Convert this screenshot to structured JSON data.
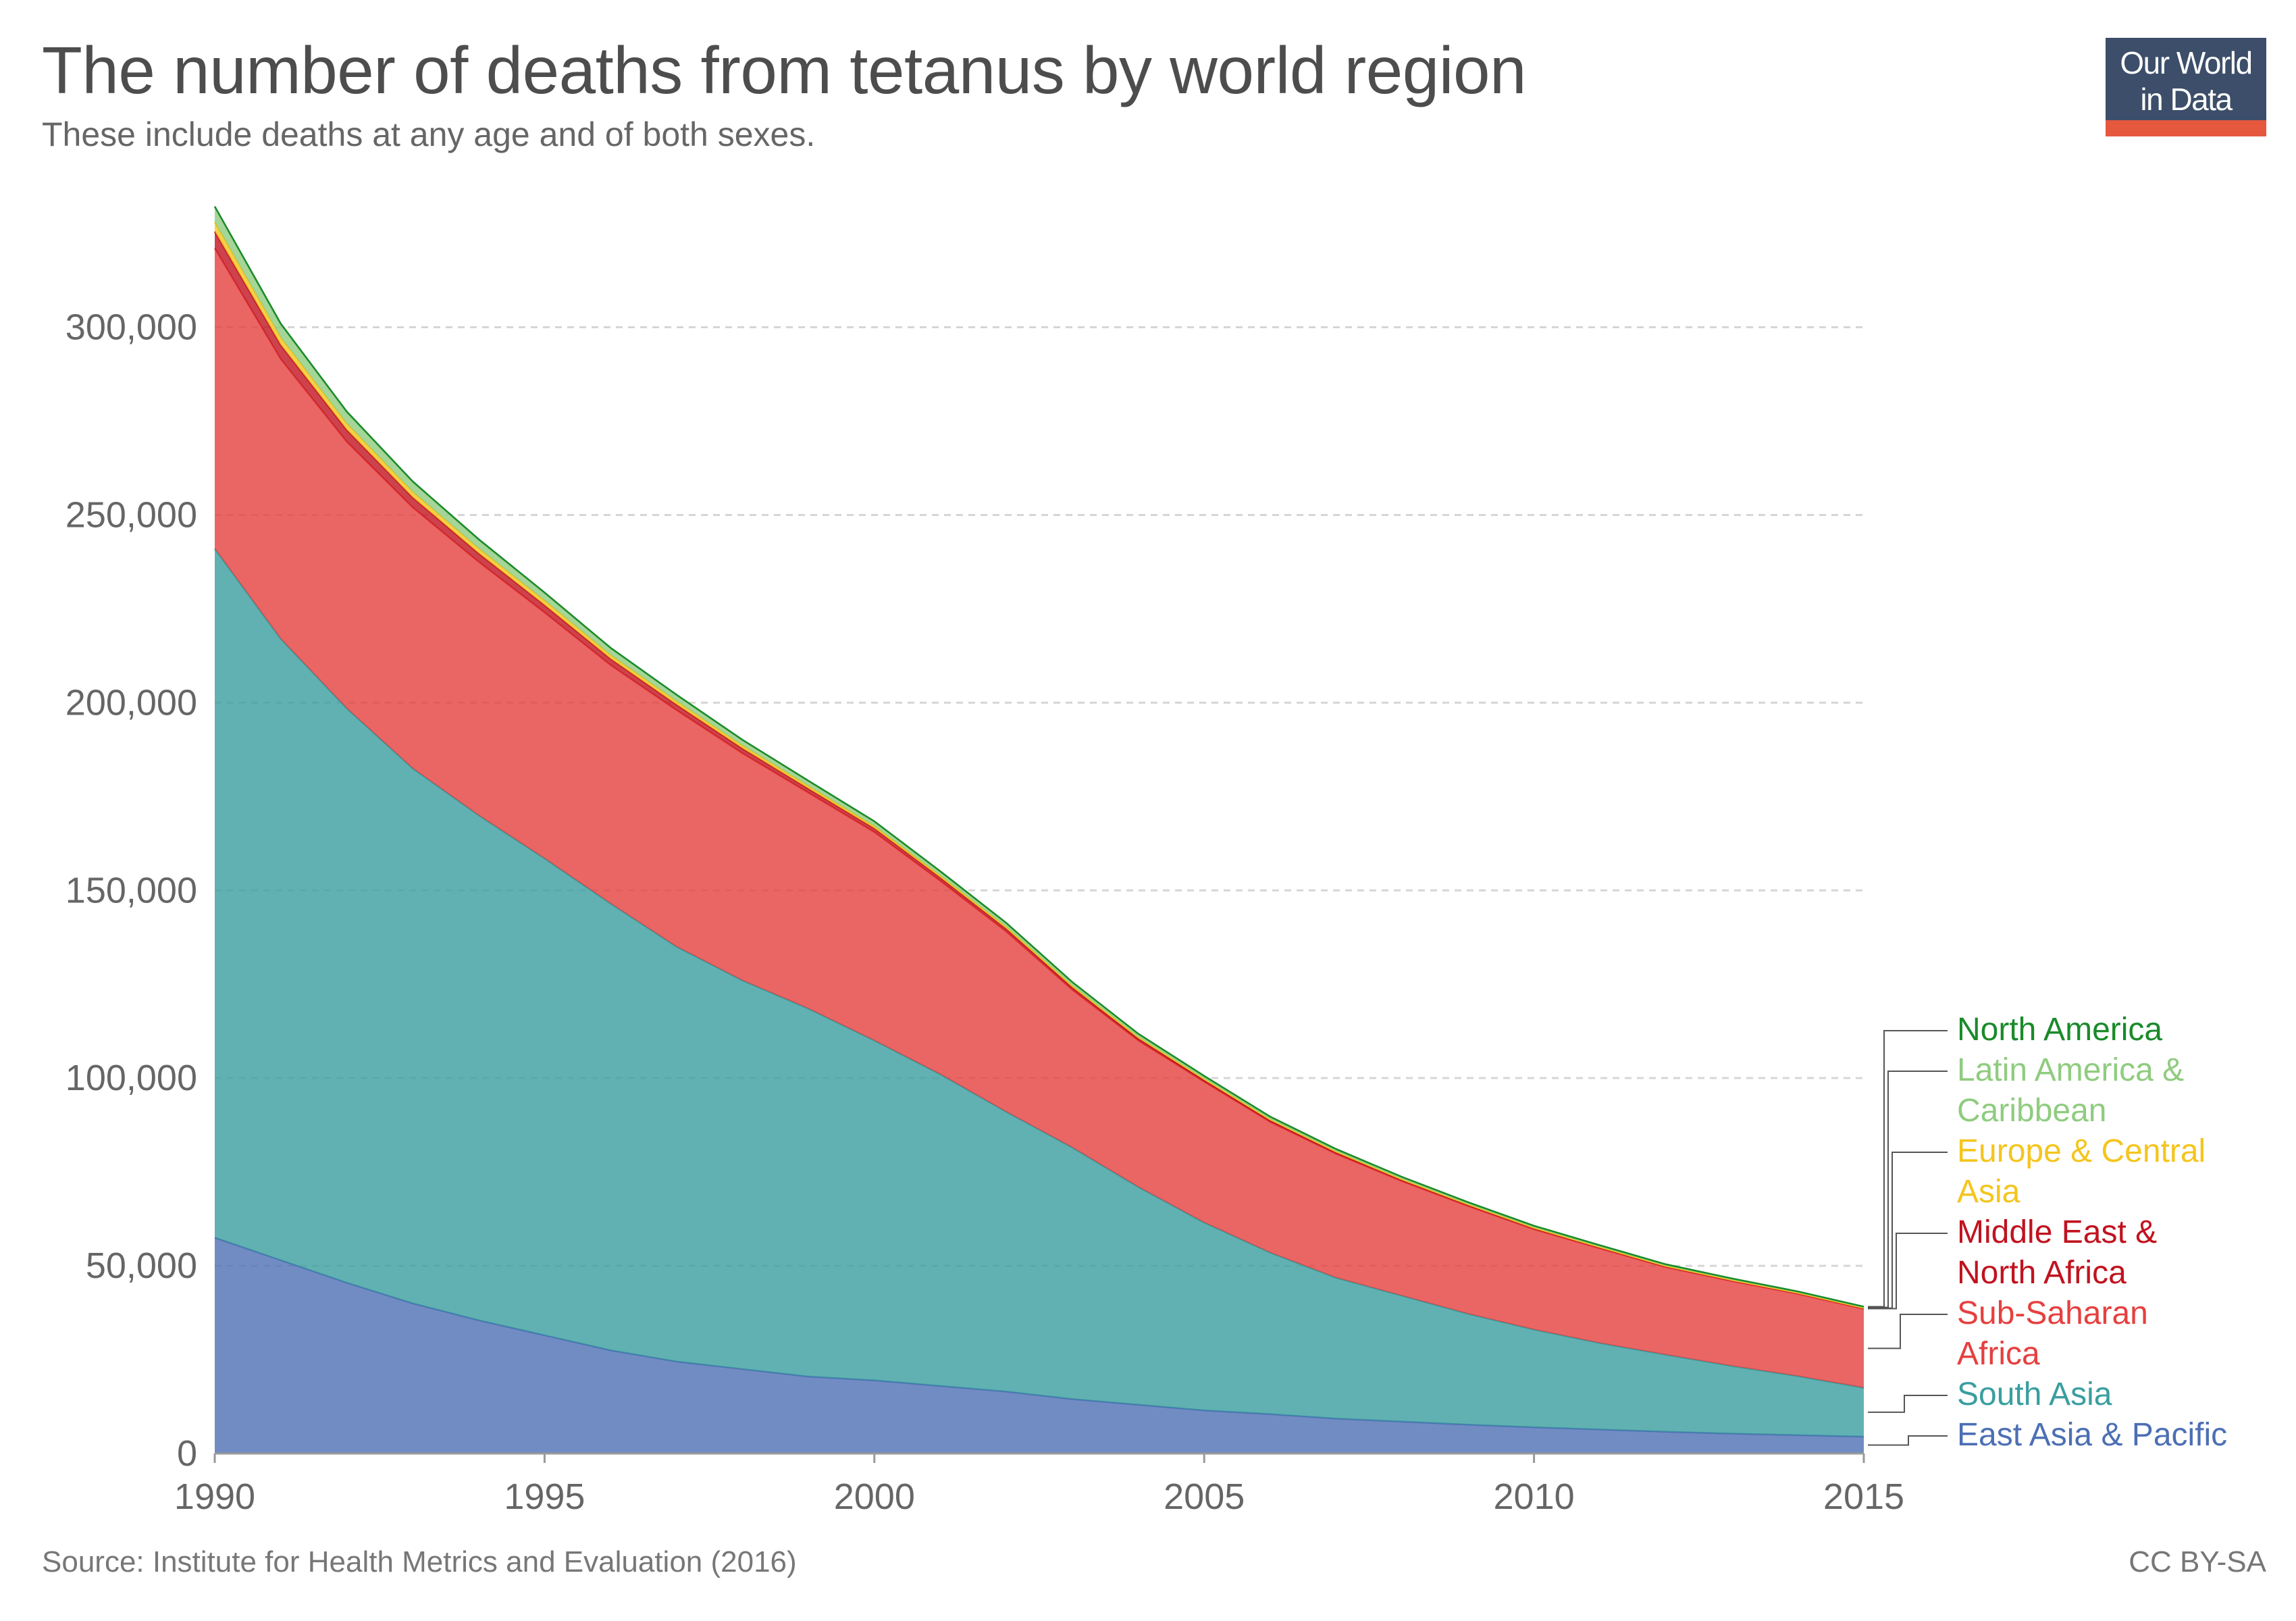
{
  "header": {
    "title": "The number of deaths from tetanus by world region",
    "subtitle": "These include deaths at any age and of both sexes.",
    "logo_line1": "Our World",
    "logo_line2": "in Data"
  },
  "footer": {
    "source": "Source: Institute for Health Metrics and Evaluation (2016)",
    "license": "CC BY-SA"
  },
  "chart_data": {
    "type": "area",
    "stacked": true,
    "title": "The number of deaths from tetanus by world region",
    "subtitle": "These include deaths at any age and of both sexes.",
    "xlabel": "",
    "ylabel": "",
    "xlim": [
      1990,
      2015
    ],
    "ylim": [
      0,
      335000
    ],
    "x_ticks": [
      1990,
      1995,
      2000,
      2005,
      2010,
      2015
    ],
    "x_tick_labels": [
      "1990",
      "1995",
      "2000",
      "2005",
      "2010",
      "2015"
    ],
    "y_ticks": [
      0,
      50000,
      100000,
      150000,
      200000,
      250000,
      300000
    ],
    "y_tick_labels": [
      "0",
      "50,000",
      "100,000",
      "150,000",
      "200,000",
      "250,000",
      "300,000"
    ],
    "grid": "horizontal dashed",
    "legend_position": "right",
    "x": [
      1990,
      1991,
      1992,
      1993,
      1994,
      1995,
      1996,
      1997,
      1998,
      1999,
      2000,
      2001,
      2002,
      2003,
      2004,
      2005,
      2006,
      2007,
      2008,
      2009,
      2010,
      2011,
      2012,
      2013,
      2014,
      2015
    ],
    "series": [
      {
        "name": "East Asia & Pacific",
        "color": "#4c6fb4",
        "label_lines": [
          "East Asia & Pacific"
        ],
        "values": [
          57500,
          51500,
          45500,
          40000,
          35500,
          31500,
          27500,
          24500,
          22500,
          20500,
          19500,
          18000,
          16500,
          14500,
          13000,
          11500,
          10500,
          9300,
          8500,
          7700,
          7000,
          6400,
          5800,
          5300,
          4900,
          4500
        ]
      },
      {
        "name": "South Asia",
        "color": "#3a9e9f",
        "label_lines": [
          "South Asia"
        ],
        "values": [
          183500,
          165500,
          153000,
          142500,
          134500,
          127000,
          119000,
          110500,
          103500,
          98000,
          90500,
          83000,
          74500,
          67000,
          58000,
          50000,
          43000,
          37500,
          33500,
          29500,
          26000,
          23000,
          20500,
          18000,
          15700,
          13000
        ]
      },
      {
        "name": "Sub-Saharan Africa",
        "color": "#e5403f",
        "label_lines": [
          "Sub-Saharan",
          "Africa"
        ],
        "values": [
          80000,
          74500,
          71000,
          69500,
          67500,
          65500,
          63500,
          63000,
          60500,
          57500,
          55500,
          51500,
          48000,
          42000,
          39000,
          37500,
          34800,
          33000,
          30500,
          28700,
          26700,
          25200,
          23300,
          22600,
          21900,
          21000
        ]
      },
      {
        "name": "Middle East & North Africa",
        "color": "#c0131f",
        "label_lines": [
          "Middle East &",
          "North Africa"
        ],
        "values": [
          4500,
          3800,
          3200,
          2700,
          2300,
          2000,
          1700,
          1500,
          1300,
          1100,
          1000,
          900,
          800,
          700,
          600,
          500,
          450,
          400,
          350,
          300,
          280,
          260,
          240,
          220,
          200,
          180
        ]
      },
      {
        "name": "Europe & Central Asia",
        "color": "#f4c51d",
        "label_lines": [
          "Europe & Central",
          "Asia"
        ],
        "values": [
          2500,
          2000,
          1700,
          1500,
          1300,
          1200,
          1000,
          900,
          800,
          700,
          600,
          500,
          450,
          400,
          350,
          300,
          270,
          240,
          210,
          190,
          170,
          150,
          130,
          120,
          110,
          100
        ]
      },
      {
        "name": "Latin America & Caribbean",
        "color": "#8fcc7f",
        "label_lines": [
          "Latin America &",
          "Caribbean"
        ],
        "values": [
          4000,
          3500,
          3000,
          2600,
          2300,
          2000,
          1800,
          1600,
          1400,
          1300,
          1200,
          1100,
          1000,
          900,
          800,
          700,
          650,
          600,
          550,
          500,
          460,
          420,
          380,
          350,
          320,
          300
        ]
      },
      {
        "name": "North America",
        "color": "#1a8a2a",
        "label_lines": [
          "North America"
        ],
        "values": [
          200,
          190,
          180,
          170,
          160,
          150,
          140,
          130,
          120,
          110,
          100,
          95,
          90,
          85,
          80,
          75,
          70,
          65,
          60,
          55,
          50,
          48,
          46,
          44,
          42,
          40
        ]
      }
    ]
  }
}
